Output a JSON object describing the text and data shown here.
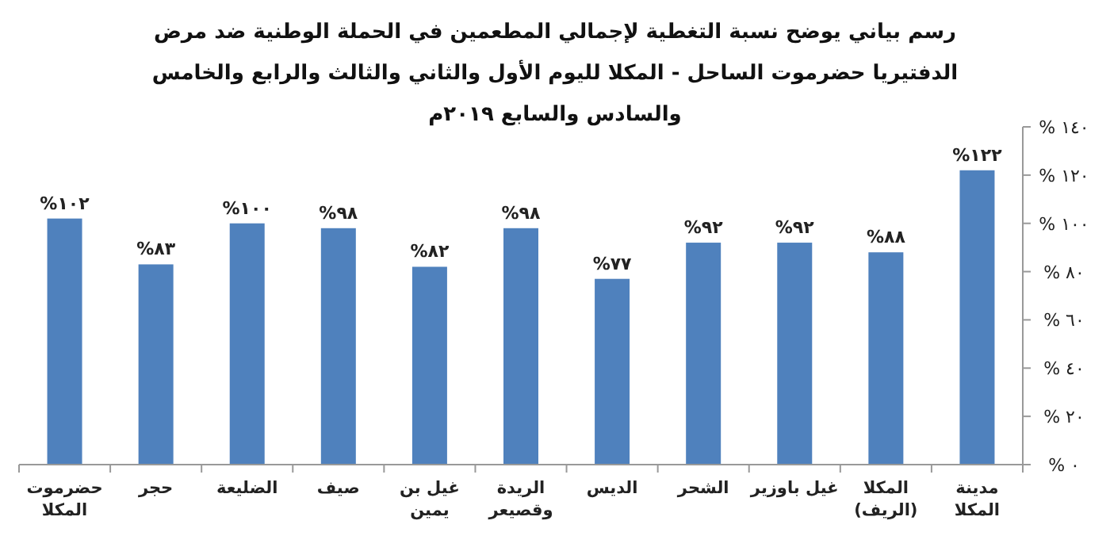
{
  "chart_data": {
    "type": "bar",
    "title": "رسم بياني يوضح نسبة التغطية لإجمالي المطعمين في الحملة الوطنية ضد مرض الدفتيريا حضرموت الساحل - المكلا لليوم الأول والثاني والثالث والرابع والخامس والسادس والسابع ٢٠١٩م",
    "categories": [
      "حضرموت المكلا",
      "حجر",
      "الضليعة",
      "صيف",
      "غيل بن يمين",
      "الريدة وقصيعر",
      "الديس",
      "الشحر",
      "غيل باوزير",
      "المكلا (الريف)",
      "مدينة المكلا"
    ],
    "values": [
      102,
      83,
      100,
      98,
      82,
      98,
      77,
      92,
      92,
      88,
      122
    ],
    "value_labels": [
      "%١٠٢",
      "%٨٣",
      "%١٠٠",
      "%٩٨",
      "%٨٢",
      "%٩٨",
      "%٧٧",
      "%٩٢",
      "%٩٢",
      "%٨٨",
      "%١٢٢"
    ],
    "color": "#4f81bd",
    "ylim": [
      0,
      140
    ],
    "yticks": [
      {
        "value": 0,
        "label": "% ٠"
      },
      {
        "value": 20,
        "label": "% ٢٠"
      },
      {
        "value": 40,
        "label": "% ٤٠"
      },
      {
        "value": 60,
        "label": "% ٦٠"
      },
      {
        "value": 80,
        "label": "% ٨٠"
      },
      {
        "value": 100,
        "label": "% ١٠٠"
      },
      {
        "value": 120,
        "label": "% ١٢٠"
      },
      {
        "value": 140,
        "label": "% ١٤٠"
      }
    ],
    "grid": false
  }
}
